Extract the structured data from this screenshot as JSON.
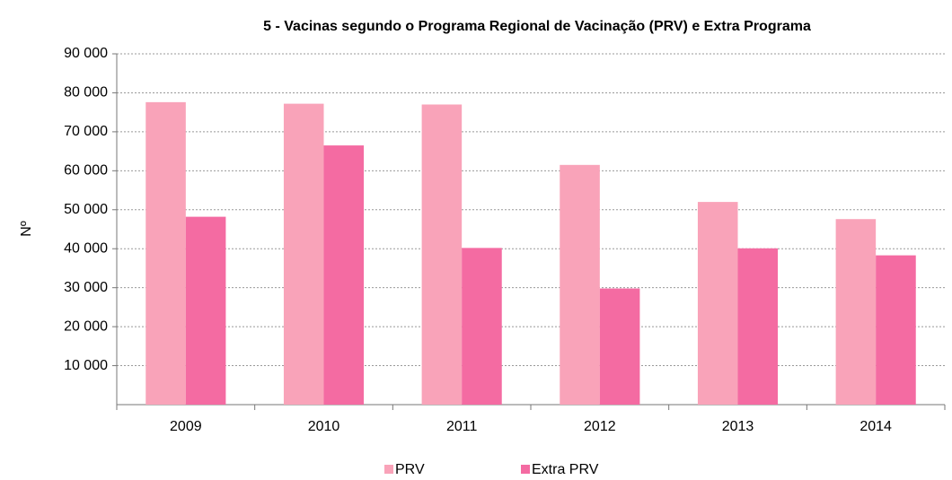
{
  "chart_data": {
    "type": "bar",
    "title": "5 - Vacinas segundo o Programa Regional de Vacinação (PRV) e Extra Programa",
    "ylabel": "Nº",
    "categories": [
      "2009",
      "2010",
      "2011",
      "2012",
      "2013",
      "2014"
    ],
    "series": [
      {
        "name": "PRV",
        "color": "#f9a3b9",
        "values": [
          77600,
          77200,
          77000,
          61500,
          52000,
          47600
        ]
      },
      {
        "name": "Extra PRV",
        "color": "#f46ba2",
        "values": [
          48200,
          66500,
          40200,
          29800,
          40100,
          38300
        ]
      }
    ],
    "ylim": [
      0,
      90000
    ],
    "yticks": [
      {
        "value": 10000,
        "label": "10 000"
      },
      {
        "value": 20000,
        "label": "20 000"
      },
      {
        "value": 30000,
        "label": "30 000"
      },
      {
        "value": 40000,
        "label": "40 000"
      },
      {
        "value": 50000,
        "label": "50 000"
      },
      {
        "value": 60000,
        "label": "60 000"
      },
      {
        "value": 70000,
        "label": "70 000"
      },
      {
        "value": 80000,
        "label": "80 000"
      },
      {
        "value": 90000,
        "label": "90 000"
      }
    ],
    "grid": true
  }
}
